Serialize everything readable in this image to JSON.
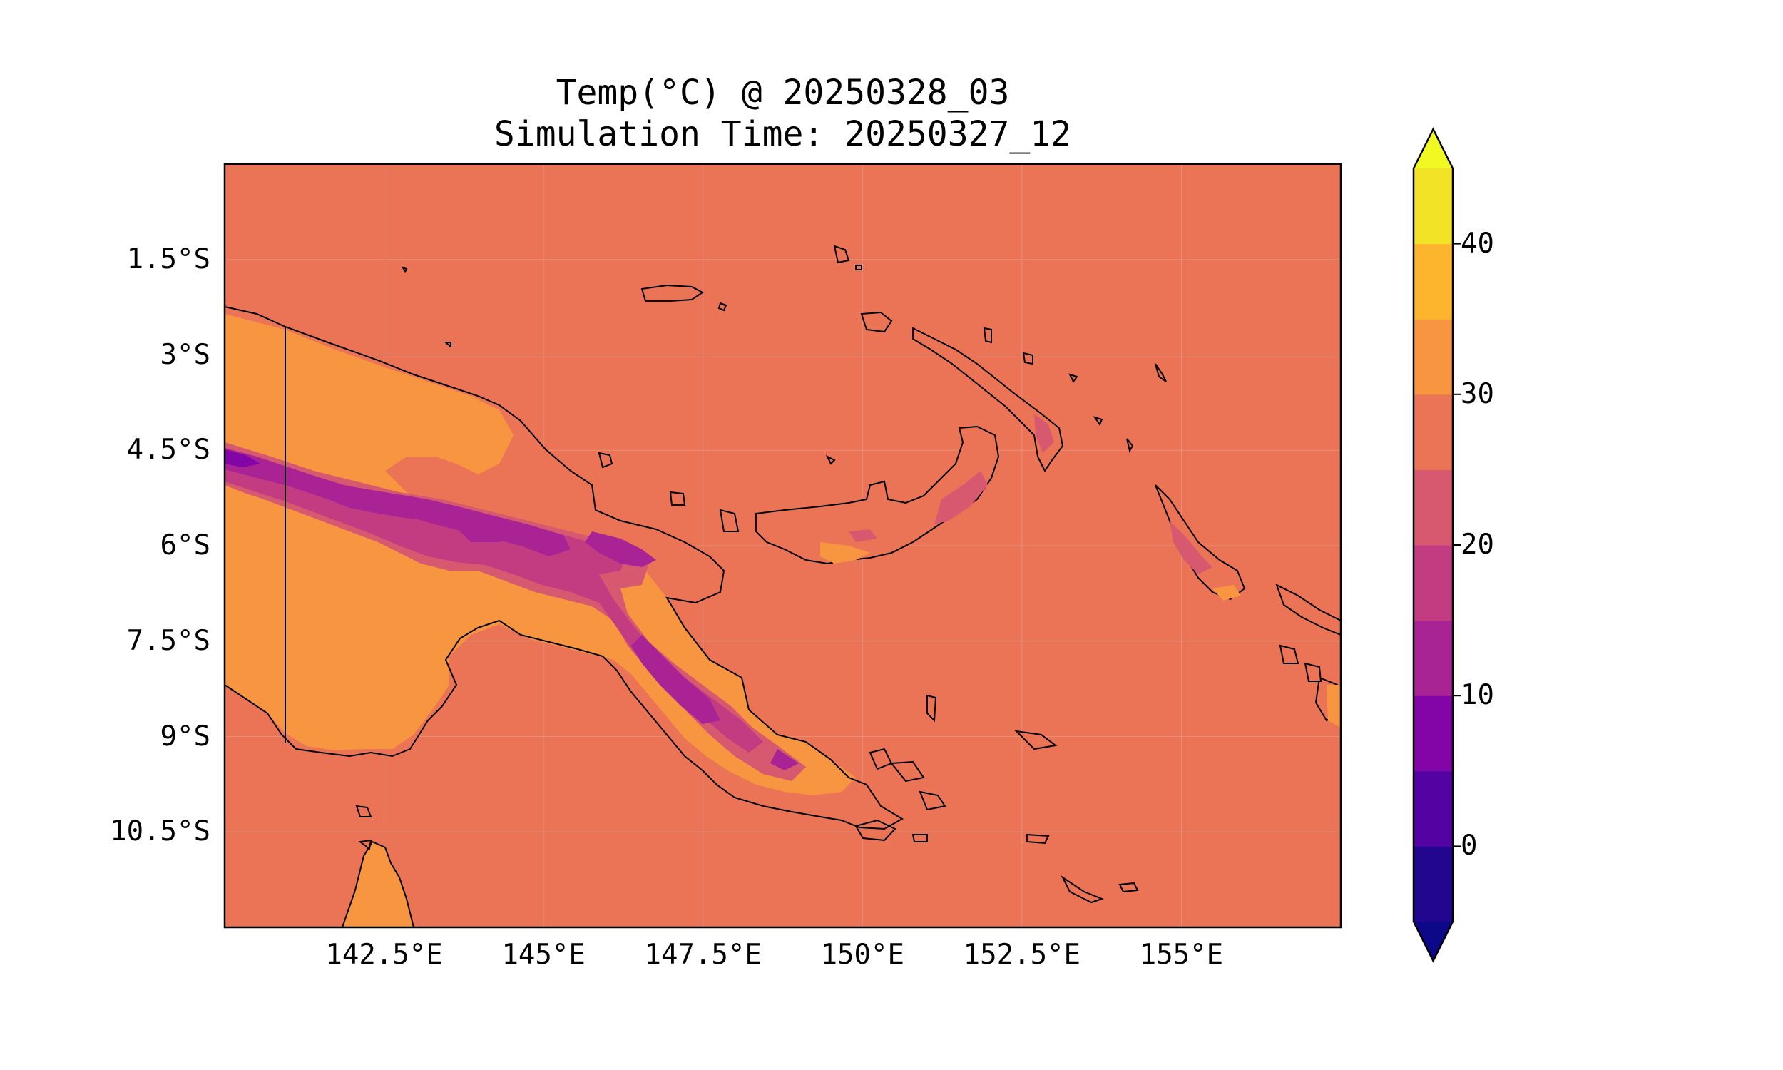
{
  "title": {
    "line1": "Temp(°C) @ 20250328_03",
    "line2": "Simulation Time: 20250327_12"
  },
  "map": {
    "region": "Papua New Guinea",
    "extent_lon": [
      140.0,
      157.5
    ],
    "extent_lat": [
      -12.0,
      0.0
    ],
    "grid": true,
    "ocean_color": "#eb7457",
    "coastline_color": "#000000"
  },
  "axes": {
    "lat_ticks": [
      {
        "value": -1.5,
        "label": "1.5°S"
      },
      {
        "value": -3.0,
        "label": "3°S"
      },
      {
        "value": -4.5,
        "label": "4.5°S"
      },
      {
        "value": -6.0,
        "label": "6°S"
      },
      {
        "value": -7.5,
        "label": "7.5°S"
      },
      {
        "value": -9.0,
        "label": "9°S"
      },
      {
        "value": -10.5,
        "label": "10.5°S"
      }
    ],
    "lon_ticks": [
      {
        "value": 142.5,
        "label": "142.5°E"
      },
      {
        "value": 145.0,
        "label": "145°E"
      },
      {
        "value": 147.5,
        "label": "147.5°E"
      },
      {
        "value": 150.0,
        "label": "150°E"
      },
      {
        "value": 152.5,
        "label": "152.5°E"
      },
      {
        "value": 155.0,
        "label": "155°E"
      }
    ]
  },
  "colorbar": {
    "range": [
      -5,
      45
    ],
    "extend": "both",
    "bins": [
      {
        "from": -5,
        "to": 0,
        "color": "#220690"
      },
      {
        "from": 0,
        "to": 5,
        "color": "#5402a3"
      },
      {
        "from": 5,
        "to": 10,
        "color": "#8305a7"
      },
      {
        "from": 10,
        "to": 15,
        "color": "#a92395"
      },
      {
        "from": 15,
        "to": 20,
        "color": "#c33c82"
      },
      {
        "from": 20,
        "to": 25,
        "color": "#d65970"
      },
      {
        "from": 25,
        "to": 30,
        "color": "#eb7457"
      },
      {
        "from": 30,
        "to": 35,
        "color": "#f89540"
      },
      {
        "from": 35,
        "to": 40,
        "color": "#fdb52e"
      },
      {
        "from": 40,
        "to": 45,
        "color": "#f2e326"
      }
    ],
    "under_color": "#0d0887",
    "over_color": "#f0f921",
    "ticks": [
      {
        "value": 0,
        "label": "0"
      },
      {
        "value": 10,
        "label": "10"
      },
      {
        "value": 20,
        "label": "20"
      },
      {
        "value": 30,
        "label": "30"
      },
      {
        "value": 40,
        "label": "40"
      }
    ]
  }
}
